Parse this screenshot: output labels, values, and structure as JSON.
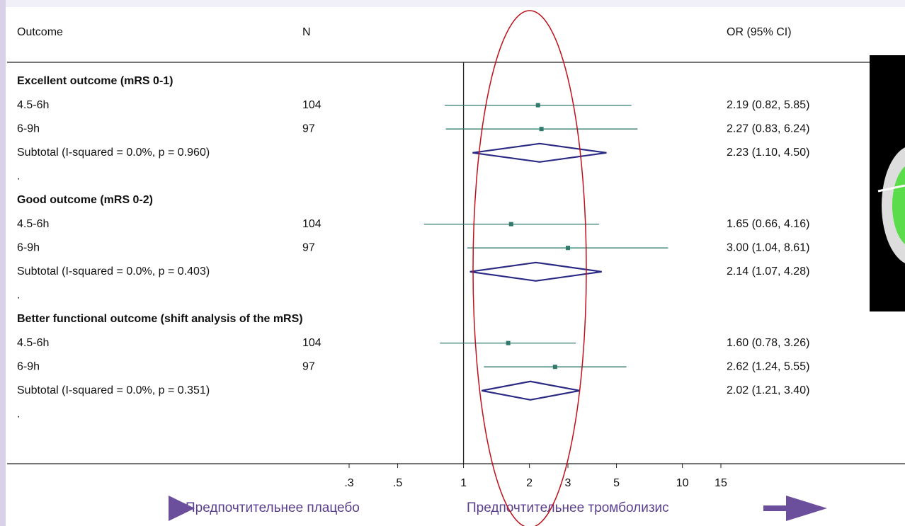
{
  "chart_data": {
    "type": "forest",
    "headers": {
      "outcome": "Outcome",
      "n": "N",
      "or": "OR (95% CI)"
    },
    "categories": [
      "Excellent outcome (mRS 0-1)",
      "4.5-6h",
      "6-9h",
      "Subtotal  (I-squared = 0.0%, p = 0.960)",
      ".",
      "Good outcome (mRS 0-2)",
      "4.5-6h",
      "6-9h",
      "Subtotal  (I-squared = 0.0%, p = 0.403)",
      ".",
      "Better functional outcome  (shift analysis of the mRS)",
      "4.5-6h",
      "6-9h",
      "Subtotal  (I-squared = 0.0%, p = 0.351)",
      "."
    ],
    "markers": [
      "heading",
      "square",
      "square",
      "diamond",
      null,
      "heading",
      "square",
      "square",
      "diamond",
      null,
      "heading",
      "square",
      "square",
      "diamond",
      null
    ],
    "n": [
      null,
      104,
      97,
      null,
      null,
      null,
      104,
      97,
      null,
      null,
      null,
      104,
      97,
      null,
      null
    ],
    "or": [
      null,
      2.19,
      2.27,
      2.23,
      null,
      null,
      1.65,
      3.0,
      2.14,
      null,
      null,
      1.6,
      2.62,
      2.02,
      null
    ],
    "lo": [
      null,
      0.82,
      0.83,
      1.1,
      null,
      null,
      0.66,
      1.04,
      1.07,
      null,
      null,
      0.78,
      1.24,
      1.21,
      null
    ],
    "hi": [
      null,
      5.85,
      6.24,
      4.5,
      null,
      null,
      4.16,
      8.61,
      4.28,
      null,
      null,
      3.26,
      5.55,
      3.4,
      null
    ],
    "value_labels": [
      null,
      "2.19 (0.82, 5.85)",
      "2.27 (0.83, 6.24)",
      "2.23 (1.10, 4.50)",
      null,
      null,
      "1.65 (0.66, 4.16)",
      "3.00 (1.04, 8.61)",
      "2.14 (1.07, 4.28)",
      null,
      null,
      "1.60 (0.78, 3.26)",
      "2.62 (1.24, 5.55)",
      "2.02 (1.21, 3.40)",
      null
    ],
    "log_x": true,
    "reference": 1,
    "xlim": [
      {
        "value": 0.3,
        "label": ".3"
      },
      15
    ],
    "xticks": [
      {
        "value": 0.3,
        "label": ".3"
      },
      {
        "value": 0.5,
        "label": ".5"
      },
      1,
      2,
      3,
      5,
      10,
      15
    ],
    "ci_color": "#2f7a6c",
    "diamond_color": "#2a2a85",
    "highlight_color": "#c0101a",
    "arrow_color": "#6b4f9c",
    "annotations": {
      "left": "Предпочтительнее плацебо",
      "right": "Предпочтительнее тромболизис"
    }
  }
}
